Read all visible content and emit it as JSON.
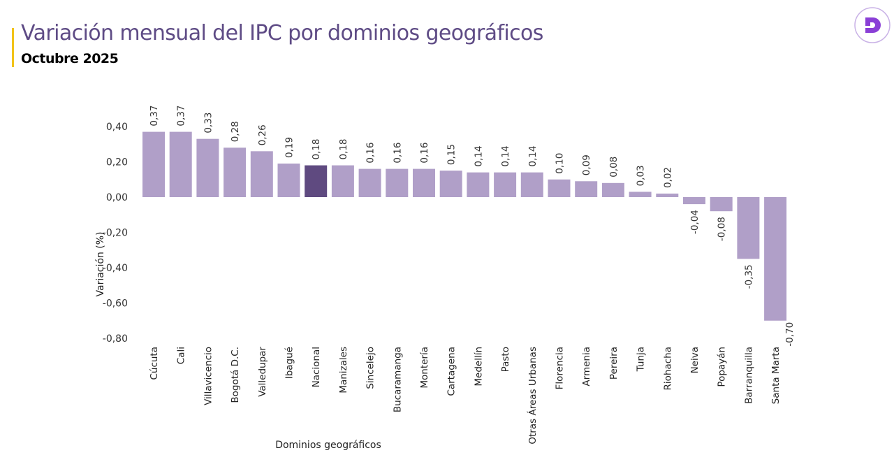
{
  "header": {
    "title": "Variación mensual del IPC por dominios geográficos",
    "subtitle": "Octubre 2025",
    "logo_icon": "dane-d-logo",
    "accent_color": "#f2c318",
    "title_color": "#5e4b85"
  },
  "chart_data": {
    "type": "bar",
    "title": "",
    "xlabel": "Dominios geográficos",
    "ylabel": "Variación (%)",
    "ylim": [
      -0.8,
      0.4
    ],
    "yticks": [
      0.4,
      0.2,
      0.0,
      -0.2,
      -0.4,
      -0.6,
      -0.8
    ],
    "ytick_labels": [
      "0,40",
      "0,20",
      "0,00",
      "-0,20",
      "-0,40",
      "-0,60",
      "-0,80"
    ],
    "grid": false,
    "categories": [
      "Cúcuta",
      "Cali",
      "Villavicencio",
      "Bogotá D.C.",
      "Valledupar",
      "Ibagué",
      "Nacional",
      "Manizales",
      "Sincelejo",
      "Bucaramanga",
      "Montería",
      "Cartagena",
      "Medellín",
      "Pasto",
      "Otras Áreas Urbanas",
      "Florencia",
      "Armenia",
      "Pereira",
      "Tunja",
      "Riohacha",
      "Neiva",
      "Popayán",
      "Barranquilla",
      "Santa Marta"
    ],
    "values": [
      0.37,
      0.37,
      0.33,
      0.28,
      0.26,
      0.19,
      0.18,
      0.18,
      0.16,
      0.16,
      0.16,
      0.15,
      0.14,
      0.14,
      0.14,
      0.1,
      0.09,
      0.08,
      0.03,
      0.02,
      -0.04,
      -0.08,
      -0.35,
      -0.7
    ],
    "value_labels": [
      "0,37",
      "0,37",
      "0,33",
      "0,28",
      "0,26",
      "0,19",
      "0,18",
      "0,18",
      "0,16",
      "0,16",
      "0,16",
      "0,15",
      "0,14",
      "0,14",
      "0,14",
      "0,10",
      "0,09",
      "0,08",
      "0,03",
      "0,02",
      "-0,04",
      "-0,08",
      "-0,35",
      "-0,70"
    ],
    "colors": {
      "default": "#b09fc8",
      "highlight": "#5f4a80"
    },
    "highlight_category": "Nacional"
  }
}
